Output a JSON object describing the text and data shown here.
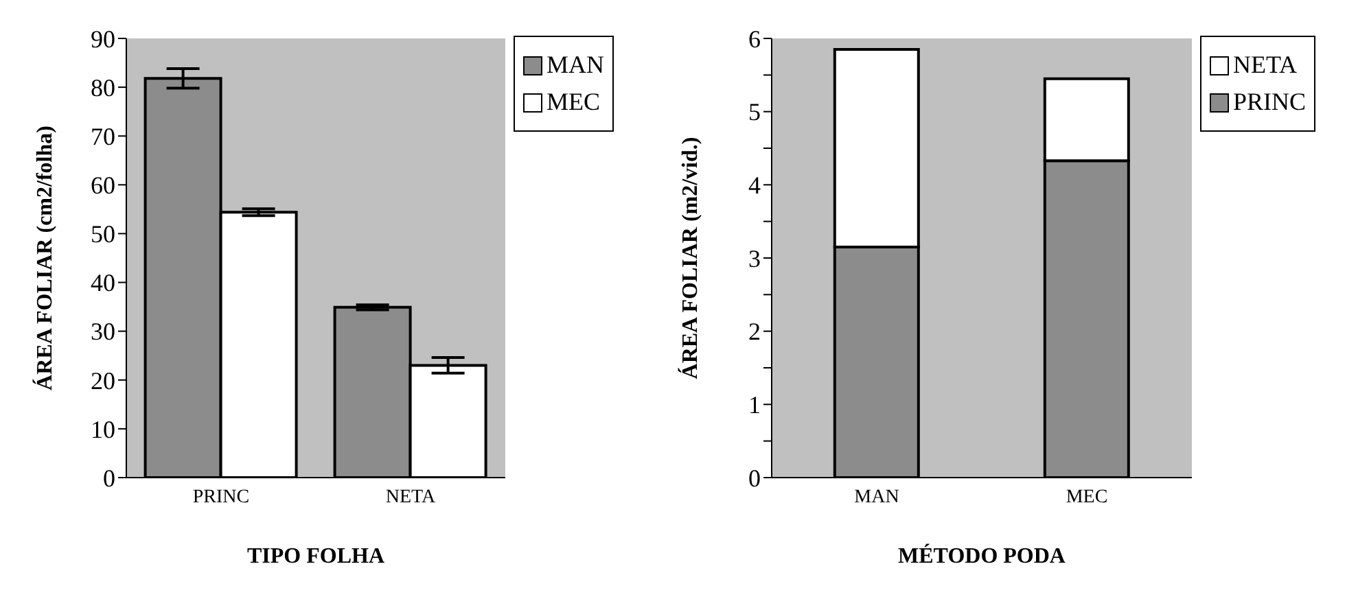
{
  "chart_data": [
    {
      "type": "bar",
      "xlabel": "TIPO FOLHA",
      "ylabel": "ÁREA FOLIAR (cm2/folha)",
      "categories": [
        "PRINC",
        "NETA"
      ],
      "series": [
        {
          "name": "MAN",
          "color": "#8c8c8c",
          "values": [
            81.8,
            34.9
          ],
          "errors": [
            2,
            0.5
          ]
        },
        {
          "name": "MEC",
          "color": "#ffffff",
          "values": [
            54.4,
            23
          ],
          "errors": [
            0.7,
            1.6
          ]
        }
      ],
      "ylim": [
        0,
        90
      ],
      "yticks": [
        0,
        10,
        20,
        30,
        40,
        50,
        60,
        70,
        80,
        90
      ],
      "grid": false,
      "legend": "right"
    },
    {
      "type": "bar",
      "stacked": true,
      "xlabel": "MÉTODO PODA",
      "ylabel": "ÁREA FOLIAR (m2/vid.)",
      "categories": [
        "MAN",
        "MEC"
      ],
      "series": [
        {
          "name": "PRINC",
          "color": "#8c8c8c",
          "values": [
            3.15,
            4.33
          ]
        },
        {
          "name": "NETA",
          "color": "#ffffff",
          "values": [
            2.7,
            1.12
          ]
        }
      ],
      "ylim": [
        0,
        6
      ],
      "yticks": [
        0,
        {
          "value": 0.5,
          "label": null
        },
        1,
        {
          "value": 1.5,
          "label": null
        },
        2,
        {
          "value": 2.5,
          "label": null
        },
        3,
        {
          "value": 3.5,
          "label": null
        },
        4,
        {
          "value": 4.5,
          "label": null
        },
        5,
        {
          "value": 5.5,
          "label": null
        },
        6
      ],
      "grid": false,
      "legend": "right"
    }
  ]
}
